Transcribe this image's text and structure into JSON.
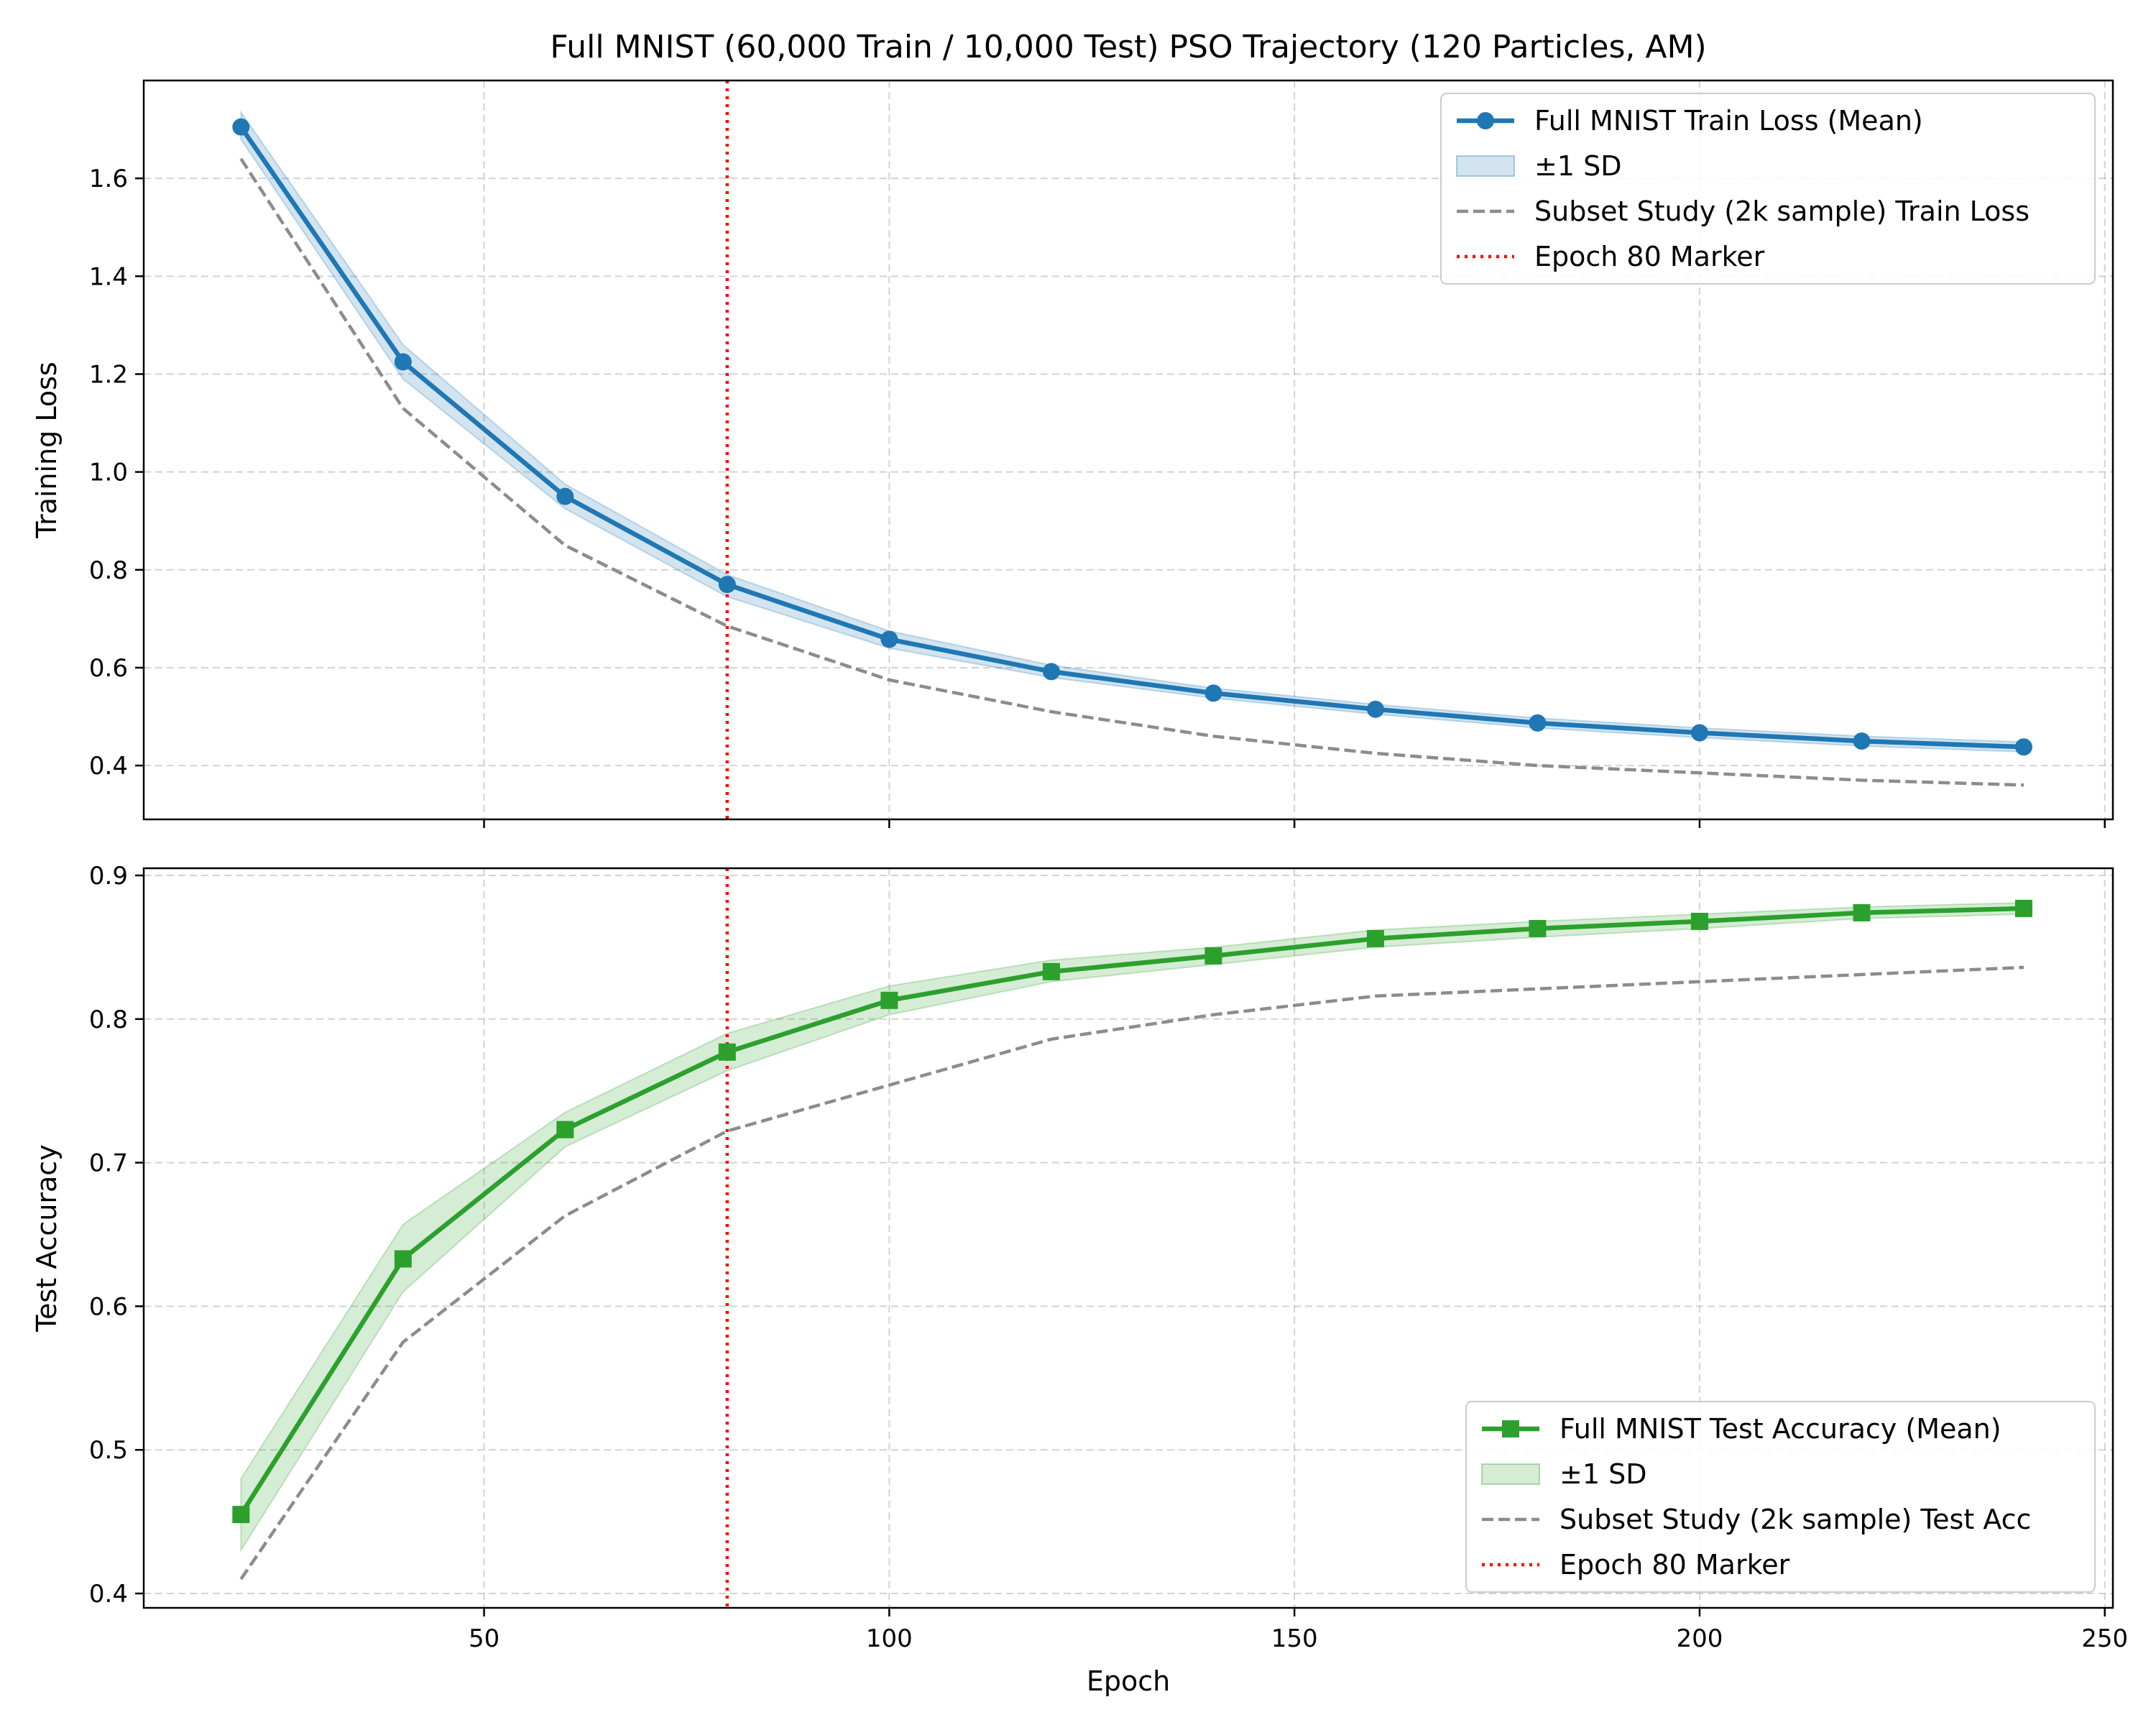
{
  "figure": {
    "title": "Full MNIST (60,000 Train / 10,000 Test) PSO Trajectory (120 Particles, AM)",
    "xlabel": "Epoch"
  },
  "chart_data": [
    {
      "type": "line",
      "ylabel": "Training Loss",
      "xlim": [
        8,
        251
      ],
      "ylim": [
        0.29,
        1.8
      ],
      "xticks": [
        50,
        100,
        150,
        200,
        250
      ],
      "show_x_tick_labels": false,
      "yticks": [
        0.4,
        0.6,
        0.8,
        1.0,
        1.2,
        1.4,
        1.6
      ],
      "ytick_labels": [
        "0.4",
        "0.6",
        "0.8",
        "1.0",
        "1.2",
        "1.4",
        "1.6"
      ],
      "grid": true,
      "legend_position": "top-right",
      "x": [
        20,
        40,
        60,
        80,
        100,
        120,
        140,
        160,
        180,
        200,
        220,
        240
      ],
      "series": [
        {
          "name": "Full MNIST Train Loss (Mean)",
          "role": "mean",
          "marker": "circle",
          "color": "#1f77b4",
          "values": [
            1.705,
            1.225,
            0.95,
            0.77,
            0.658,
            0.592,
            0.548,
            0.515,
            0.487,
            0.467,
            0.45,
            0.438
          ]
        },
        {
          "name": "±1 SD",
          "role": "band",
          "color": "#1f77b4",
          "lower": [
            1.68,
            1.19,
            0.925,
            0.745,
            0.64,
            0.58,
            0.538,
            0.505,
            0.477,
            0.457,
            0.44,
            0.428
          ],
          "upper": [
            1.735,
            1.26,
            0.975,
            0.79,
            0.675,
            0.605,
            0.558,
            0.525,
            0.497,
            0.477,
            0.46,
            0.448
          ]
        },
        {
          "name": "Subset Study (2k sample) Train Loss",
          "role": "subset",
          "color": "#8c8c8c",
          "values": [
            1.64,
            1.13,
            0.85,
            0.685,
            0.575,
            0.51,
            0.46,
            0.425,
            0.4,
            0.385,
            0.37,
            0.36
          ]
        },
        {
          "name": "Epoch 80 Marker",
          "role": "vline",
          "color": "#ff0000",
          "x": 80
        }
      ]
    },
    {
      "type": "line",
      "ylabel": "Test Accuracy",
      "xlim": [
        8,
        251
      ],
      "ylim": [
        0.39,
        0.905
      ],
      "xticks": [
        50,
        100,
        150,
        200,
        250
      ],
      "show_x_tick_labels": true,
      "xtick_labels": [
        "50",
        "100",
        "150",
        "200",
        "250"
      ],
      "yticks": [
        0.4,
        0.5,
        0.6,
        0.7,
        0.8,
        0.9
      ],
      "ytick_labels": [
        "0.4",
        "0.5",
        "0.6",
        "0.7",
        "0.8",
        "0.9"
      ],
      "grid": true,
      "legend_position": "bottom-right",
      "x": [
        20,
        40,
        60,
        80,
        100,
        120,
        140,
        160,
        180,
        200,
        220,
        240
      ],
      "series": [
        {
          "name": "Full MNIST Test Accuracy (Mean)",
          "role": "mean",
          "marker": "square",
          "color": "#2ca02c",
          "values": [
            0.455,
            0.633,
            0.723,
            0.777,
            0.813,
            0.833,
            0.844,
            0.856,
            0.863,
            0.868,
            0.874,
            0.877
          ]
        },
        {
          "name": "±1 SD",
          "role": "band",
          "color": "#2ca02c",
          "lower": [
            0.43,
            0.61,
            0.711,
            0.764,
            0.803,
            0.826,
            0.838,
            0.85,
            0.857,
            0.863,
            0.87,
            0.873
          ],
          "upper": [
            0.48,
            0.657,
            0.735,
            0.79,
            0.823,
            0.841,
            0.85,
            0.862,
            0.868,
            0.873,
            0.878,
            0.881
          ]
        },
        {
          "name": "Subset Study (2k sample) Test Acc",
          "role": "subset",
          "color": "#8c8c8c",
          "values": [
            0.41,
            0.575,
            0.663,
            0.722,
            0.754,
            0.786,
            0.803,
            0.816,
            0.821,
            0.826,
            0.831,
            0.836
          ]
        },
        {
          "name": "Epoch 80 Marker",
          "role": "vline",
          "color": "#ff0000",
          "x": 80
        }
      ]
    }
  ]
}
